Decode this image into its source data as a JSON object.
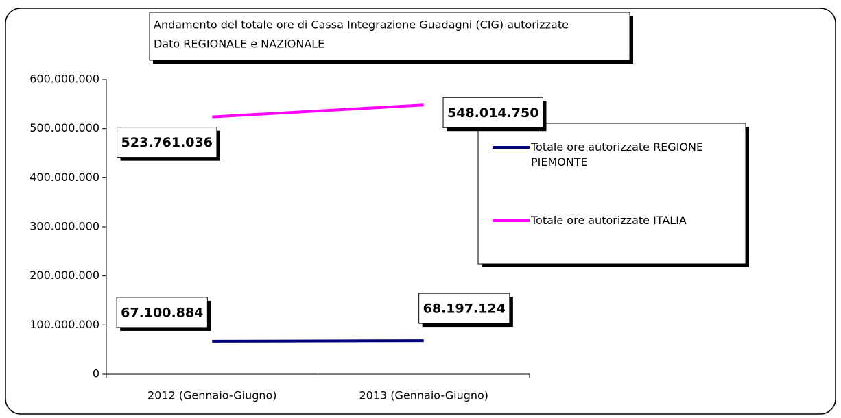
{
  "chart_data": {
    "type": "line",
    "title": "Andamento del totale ore di Cassa Integrazione Guadagni (CIG) autorizzate",
    "subtitle": "Dato REGIONALE e NAZIONALE",
    "categories": [
      "2012 (Gennaio-Giugno)",
      "2013 (Gennaio-Giugno)"
    ],
    "series": [
      {
        "name": "Totale ore autorizzate REGIONE PIEMONTE",
        "color": "#000080",
        "values": [
          67100884,
          68197124
        ],
        "value_labels": [
          "67.100.884",
          "68.197.124"
        ]
      },
      {
        "name": "Totale ore autorizzate ITALIA",
        "color": "#ff00ff",
        "values": [
          523761036,
          548014750
        ],
        "value_labels": [
          "523.761.036",
          "548.014.750"
        ]
      }
    ],
    "ylim": [
      0,
      600000000
    ],
    "yticks": [
      0,
      {
        "value": 100000000,
        "label": "100.000.000"
      },
      {
        "value": 200000000,
        "label": "200.000.000"
      },
      {
        "value": 300000000,
        "label": "300.000.000"
      },
      {
        "value": 400000000,
        "label": "400.000.000"
      },
      {
        "value": 500000000,
        "label": "500.000.000"
      },
      {
        "value": 600000000,
        "label": "600.000.000"
      }
    ],
    "legend": "right",
    "grid": false
  }
}
